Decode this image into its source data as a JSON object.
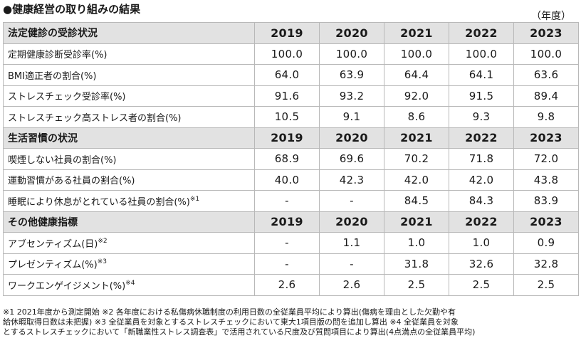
{
  "title": "●健康経営の取り組みの結果",
  "unit": "（年度）",
  "sections": [
    {
      "header": "法定健診の受診状況",
      "years": [
        "2019",
        "2020",
        "2021",
        "2022",
        "2023"
      ],
      "rows": [
        {
          "label": "定期健康診断受診率(%)",
          "note": "",
          "values": [
            "100.0",
            "100.0",
            "100.0",
            "100.0",
            "100.0"
          ]
        },
        {
          "label": "BMI適正者の割合(%)",
          "note": "",
          "values": [
            "64.0",
            "63.9",
            "64.4",
            "64.1",
            "63.6"
          ]
        },
        {
          "label": "ストレスチェック受診率(%)",
          "note": "",
          "values": [
            "91.6",
            "93.2",
            "92.0",
            "91.5",
            "89.4"
          ]
        },
        {
          "label": "ストレスチェック高ストレス者の割合(%)",
          "note": "",
          "values": [
            "10.5",
            "9.1",
            "8.6",
            "9.3",
            "9.8"
          ]
        }
      ]
    },
    {
      "header": "生活習慣の状況",
      "years": [
        "2019",
        "2020",
        "2021",
        "2022",
        "2023"
      ],
      "rows": [
        {
          "label": "喫煙しない社員の割合(%)",
          "note": "",
          "values": [
            "68.9",
            "69.6",
            "70.2",
            "71.8",
            "72.0"
          ]
        },
        {
          "label": "運動習慣がある社員の割合(%)",
          "note": "",
          "values": [
            "40.0",
            "42.3",
            "42.0",
            "42.0",
            "43.8"
          ]
        },
        {
          "label": "睡眠により休息がとれている社員の割合(%)",
          "note": "※1",
          "values": [
            "-",
            "-",
            "84.5",
            "84.3",
            "83.9"
          ]
        }
      ]
    },
    {
      "header": "その他健康指標",
      "years": [
        "2019",
        "2020",
        "2021",
        "2022",
        "2023"
      ],
      "rows": [
        {
          "label": "アブセンティズム(日)",
          "note": "※2",
          "values": [
            "-",
            "1.1",
            "1.0",
            "1.0",
            "0.9"
          ]
        },
        {
          "label": "プレゼンティズム(%)",
          "note": "※3",
          "values": [
            "-",
            "-",
            "31.8",
            "32.6",
            "32.8"
          ]
        },
        {
          "label": "ワークエンゲイジメント(%)",
          "note": "※4",
          "values": [
            "2.6",
            "2.6",
            "2.5",
            "2.5",
            "2.5"
          ]
        }
      ]
    }
  ],
  "footnotes": [
    "※1  2021年度から測定開始    ※2  各年度における私傷病休職制度の利用日数の全従業員平均により算出(傷病を理由とした欠勤や有",
    "給休暇取得日数は未把握)    ※3  全従業員を対象とするストレスチェックにおいて東大1項目版の問を追加し算出    ※4  全従業員を対象",
    "とするストレスチェックにおいて「新職業性ストレス調査表」で活用されている尺度及び質問項目により算出(4点満点の全従業員平均)"
  ]
}
